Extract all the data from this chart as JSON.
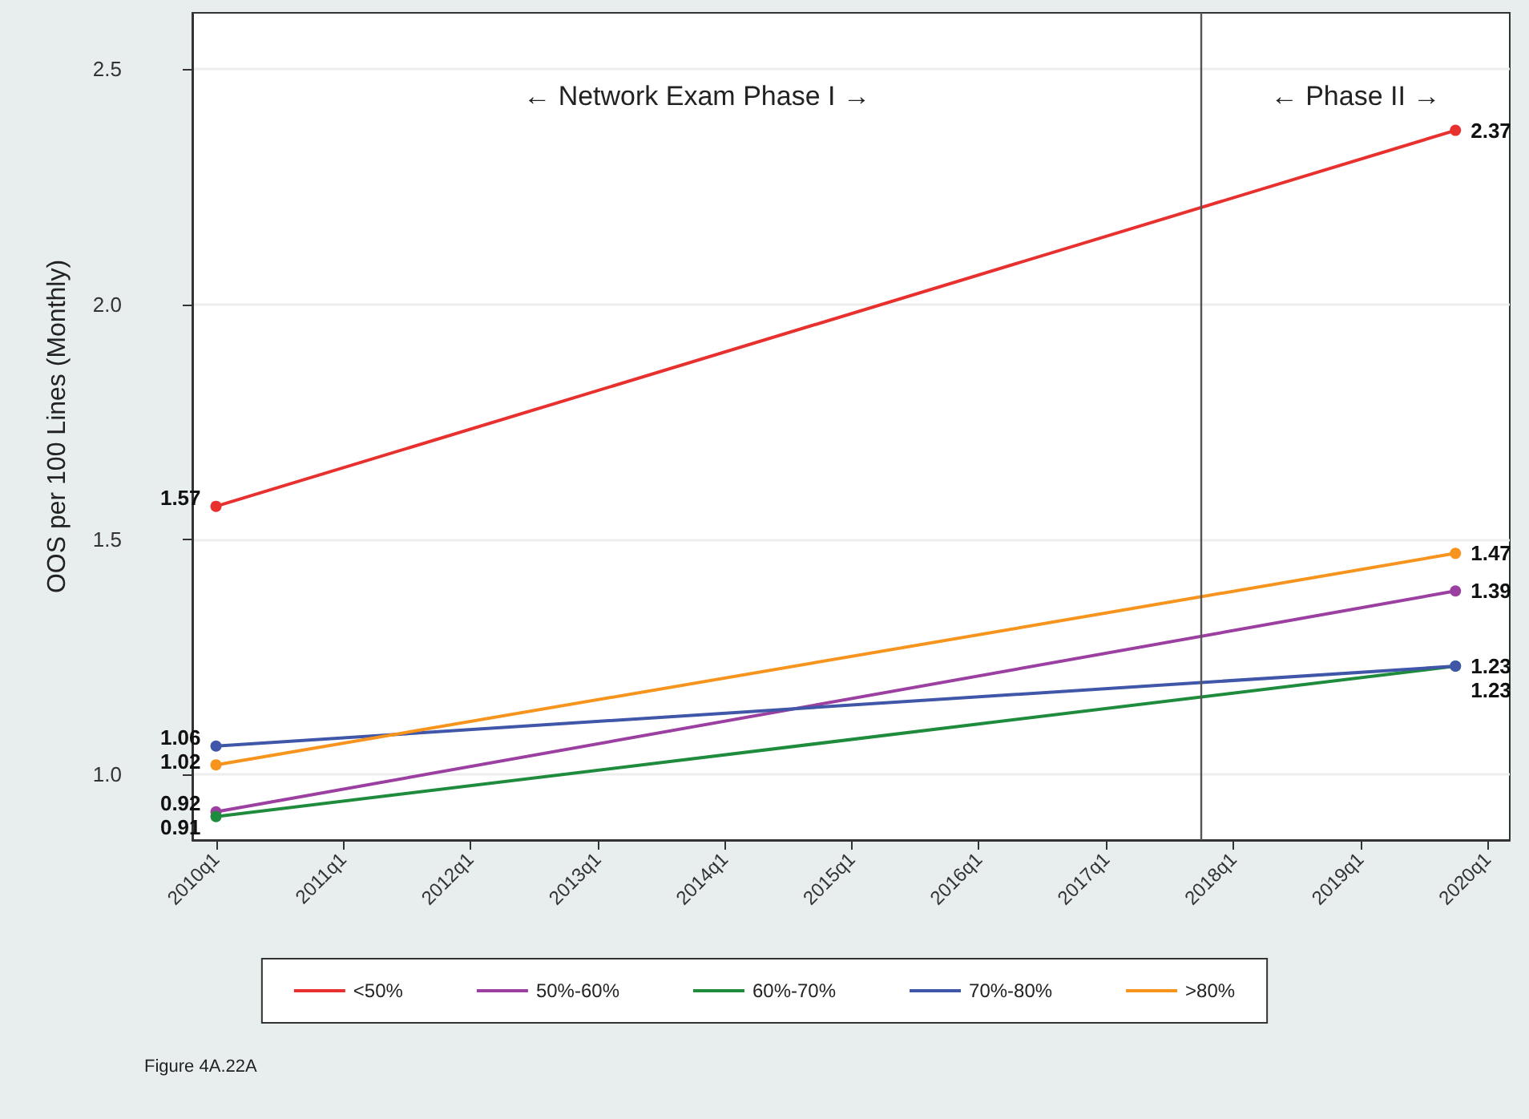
{
  "chart_data": {
    "type": "line",
    "ylabel": "OOS per 100 Lines (Monthly)",
    "x": [
      "2010-01",
      "2019-10"
    ],
    "series": [
      {
        "name": "<50%",
        "color": "#e8312f",
        "values": [
          1.57,
          2.37
        ]
      },
      {
        "name": "50%-60%",
        "color": "#9b3fa0",
        "values": [
          0.92,
          1.39
        ]
      },
      {
        "name": "60%-70%",
        "color": "#1e8c3c",
        "values": [
          0.91,
          1.23
        ]
      },
      {
        "name": "70%-80%",
        "color": "#4056a8",
        "values": [
          1.06,
          1.23
        ]
      },
      {
        "name": ">80%",
        "color": "#f7941d",
        "values": [
          1.02,
          1.47
        ]
      }
    ],
    "xlim": [
      "2009-10-25",
      "2020-03-05"
    ],
    "xticks": [
      {
        "value": "2010-01",
        "label": "2010q1"
      },
      {
        "value": "2011-01",
        "label": "2011q1"
      },
      {
        "value": "2012-01",
        "label": "2012q1"
      },
      {
        "value": "2013-01",
        "label": "2013q1"
      },
      {
        "value": "2014-01",
        "label": "2014q1"
      },
      {
        "value": "2015-01",
        "label": "2015q1"
      },
      {
        "value": "2016-01",
        "label": "2016q1"
      },
      {
        "value": "2017-01",
        "label": "2017q1"
      },
      {
        "value": "2018-01",
        "label": "2018q1"
      },
      {
        "value": "2019-01",
        "label": "2019q1"
      },
      {
        "value": "2020-01",
        "label": "2020q1"
      }
    ],
    "ylim": [
      0.86,
      2.62
    ],
    "yticks": [
      {
        "value": 1,
        "label": "1.0"
      },
      {
        "value": 1.5,
        "label": "1.5"
      },
      {
        "value": 2,
        "label": "2.0"
      },
      {
        "value": 2.5,
        "label": "2.5"
      }
    ],
    "ref_lines": [
      {
        "axis": "x",
        "value": "2017-10",
        "color": "#555555"
      }
    ],
    "annotations": [
      "← Network Exam Phase I →",
      "← Phase II →",
      "Figure 4A.22A"
    ],
    "data_labels": true,
    "grid": "y",
    "legend": "bottom",
    "marker": "circle",
    "line_style": "solid"
  }
}
